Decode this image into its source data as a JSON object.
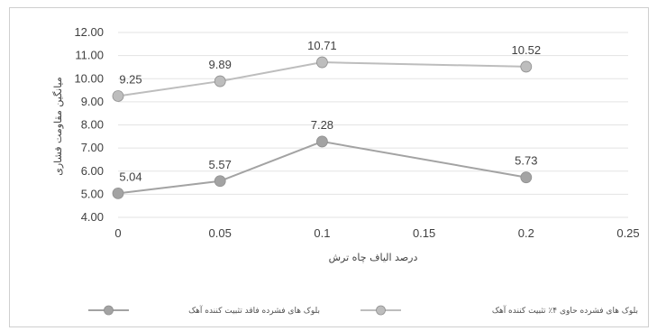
{
  "chart_data": {
    "type": "line",
    "xlabel": "درصد الیاف چاه ترش",
    "ylabel": "میانگین مقاومت فشاری",
    "xlim": [
      0,
      0.25
    ],
    "ylim": [
      4.0,
      12.0
    ],
    "x_ticks": [
      "0",
      "0.05",
      "0.1",
      "0.15",
      "0.2",
      "0.25"
    ],
    "y_ticks": [
      "4.00",
      "5.00",
      "6.00",
      "7.00",
      "8.00",
      "9.00",
      "10.00",
      "11.00",
      "12.00"
    ],
    "grid": "horizontal",
    "legend_position": "bottom",
    "series": [
      {
        "name": "بلوک های فشرده حاوی ۴٪ تثبیت کننده آهک",
        "x": [
          0,
          0.05,
          0.1,
          0.2
        ],
        "values": [
          9.25,
          9.89,
          10.71,
          10.52
        ],
        "labels": [
          "9.25",
          "9.89",
          "10.71",
          "10.52"
        ],
        "color": "#bdbdbd"
      },
      {
        "name": "بلوک های فشرده فاقد تثبیت کننده آهک",
        "x": [
          0,
          0.05,
          0.1,
          0.2
        ],
        "values": [
          5.04,
          5.57,
          7.28,
          5.73
        ],
        "labels": [
          "5.04",
          "5.57",
          "7.28",
          "5.73"
        ],
        "color": "#a3a3a3"
      }
    ]
  }
}
